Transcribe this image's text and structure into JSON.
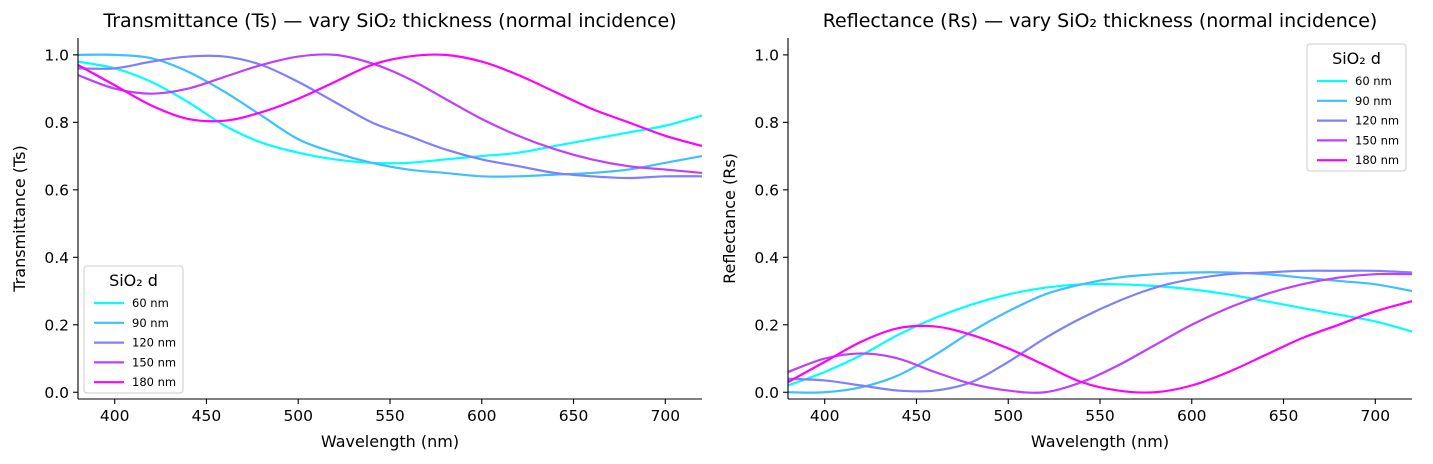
{
  "figure": {
    "background": "#ffffff"
  },
  "chart_data": [
    {
      "type": "line",
      "title": "Transmittance (Ts) — vary SiO₂ thickness (normal incidence)",
      "xlabel": "Wavelength (nm)",
      "ylabel": "Transmittance (Ts)",
      "xlim": [
        380,
        720
      ],
      "ylim": [
        -0.02,
        1.05
      ],
      "xticks": [
        "400",
        "450",
        "500",
        "550",
        "600",
        "650",
        "700"
      ],
      "yticks": [
        "0.0",
        "0.2",
        "0.4",
        "0.6",
        "0.8",
        "1.0"
      ],
      "grid": false,
      "legend": {
        "title": "SiO₂ d",
        "placement": "lower-left"
      },
      "x": [
        380,
        400,
        420,
        440,
        460,
        480,
        500,
        520,
        540,
        560,
        580,
        600,
        620,
        640,
        660,
        680,
        700,
        720
      ],
      "series": [
        {
          "name": "60 nm",
          "color": "#00ffff",
          "values": [
            0.98,
            0.96,
            0.92,
            0.86,
            0.79,
            0.74,
            0.71,
            0.69,
            0.68,
            0.68,
            0.69,
            0.7,
            0.71,
            0.73,
            0.75,
            0.77,
            0.79,
            0.82
          ]
        },
        {
          "name": "90 nm",
          "color": "#3fbfff",
          "values": [
            1.0,
            1.0,
            0.99,
            0.95,
            0.89,
            0.82,
            0.75,
            0.71,
            0.68,
            0.66,
            0.65,
            0.64,
            0.64,
            0.645,
            0.65,
            0.66,
            0.68,
            0.7
          ]
        },
        {
          "name": "120 nm",
          "color": "#7f7fff",
          "values": [
            0.96,
            0.96,
            0.98,
            0.995,
            0.995,
            0.97,
            0.92,
            0.86,
            0.8,
            0.76,
            0.72,
            0.69,
            0.67,
            0.65,
            0.64,
            0.635,
            0.64,
            0.64
          ]
        },
        {
          "name": "150 nm",
          "color": "#bf3fff",
          "values": [
            0.94,
            0.9,
            0.885,
            0.9,
            0.935,
            0.97,
            0.995,
            1.0,
            0.975,
            0.93,
            0.87,
            0.81,
            0.76,
            0.72,
            0.69,
            0.67,
            0.66,
            0.65
          ]
        },
        {
          "name": "180 nm",
          "color": "#ff00ff",
          "values": [
            0.97,
            0.91,
            0.85,
            0.81,
            0.805,
            0.83,
            0.87,
            0.92,
            0.97,
            0.995,
            1.0,
            0.98,
            0.94,
            0.89,
            0.84,
            0.8,
            0.76,
            0.73
          ]
        }
      ]
    },
    {
      "type": "line",
      "title": "Reflectance (Rs) — vary SiO₂ thickness (normal incidence)",
      "xlabel": "Wavelength (nm)",
      "ylabel": "Reflectance (Rs)",
      "xlim": [
        380,
        720
      ],
      "ylim": [
        -0.02,
        1.05
      ],
      "xticks": [
        "400",
        "450",
        "500",
        "550",
        "600",
        "650",
        "700"
      ],
      "yticks": [
        "0.0",
        "0.2",
        "0.4",
        "0.6",
        "0.8",
        "1.0"
      ],
      "grid": false,
      "legend": {
        "title": "SiO₂ d",
        "placement": "upper-right"
      },
      "x": [
        380,
        400,
        420,
        440,
        460,
        480,
        500,
        520,
        540,
        560,
        580,
        600,
        620,
        640,
        660,
        680,
        700,
        720
      ],
      "series": [
        {
          "name": "60 nm",
          "color": "#00ffff",
          "values": [
            0.02,
            0.06,
            0.11,
            0.17,
            0.22,
            0.26,
            0.29,
            0.31,
            0.32,
            0.32,
            0.315,
            0.305,
            0.29,
            0.27,
            0.25,
            0.23,
            0.21,
            0.18
          ]
        },
        {
          "name": "90 nm",
          "color": "#3fbfff",
          "values": [
            0.0,
            0.0,
            0.015,
            0.05,
            0.11,
            0.18,
            0.24,
            0.29,
            0.32,
            0.34,
            0.35,
            0.355,
            0.355,
            0.35,
            0.34,
            0.33,
            0.32,
            0.3
          ]
        },
        {
          "name": "120 nm",
          "color": "#7f7fff",
          "values": [
            0.04,
            0.035,
            0.02,
            0.005,
            0.005,
            0.03,
            0.09,
            0.16,
            0.22,
            0.27,
            0.31,
            0.335,
            0.35,
            0.355,
            0.36,
            0.36,
            0.36,
            0.355
          ]
        },
        {
          "name": "150 nm",
          "color": "#bf3fff",
          "values": [
            0.06,
            0.1,
            0.115,
            0.1,
            0.06,
            0.025,
            0.005,
            0.0,
            0.03,
            0.08,
            0.14,
            0.2,
            0.25,
            0.29,
            0.32,
            0.34,
            0.35,
            0.35
          ]
        },
        {
          "name": "180 nm",
          "color": "#ff00ff",
          "values": [
            0.03,
            0.09,
            0.15,
            0.19,
            0.195,
            0.17,
            0.13,
            0.08,
            0.03,
            0.005,
            0.0,
            0.02,
            0.06,
            0.11,
            0.16,
            0.2,
            0.24,
            0.27
          ]
        }
      ]
    }
  ]
}
